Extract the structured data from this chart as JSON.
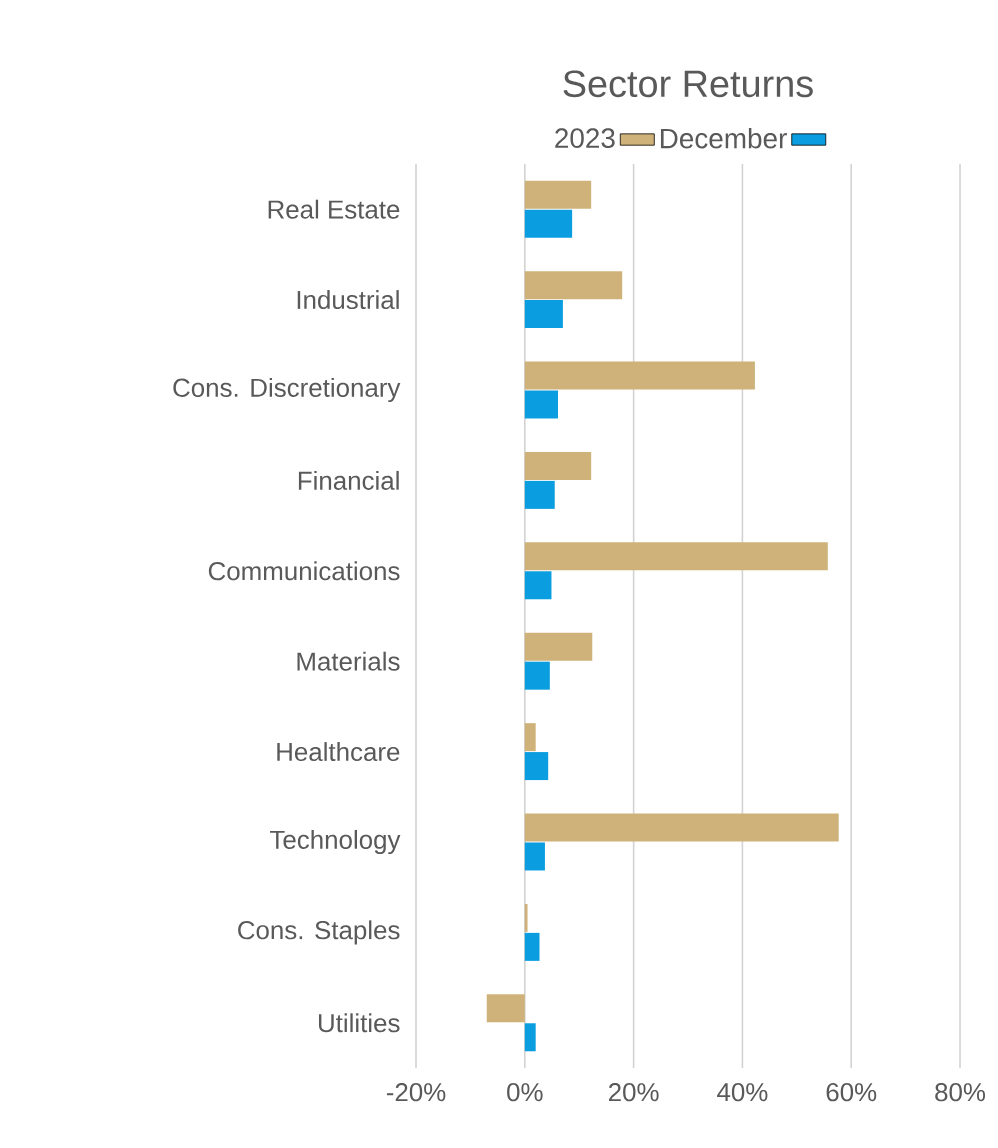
{
  "chart_data": {
    "type": "bar",
    "orientation": "horizontal",
    "title": "Sector Returns",
    "categories": [
      "Real Estate",
      "Industrial",
      "Cons. Discretionary",
      "Financial",
      "Communications",
      "Materials",
      "Healthcare",
      "Technology",
      "Cons. Staples",
      "Utilities"
    ],
    "series": [
      {
        "name": "December",
        "color": "#0a9ee0",
        "values": [
          8.7,
          7.0,
          6.1,
          5.5,
          4.9,
          4.6,
          4.3,
          3.7,
          2.7,
          2.0
        ]
      },
      {
        "name": "2023",
        "color": "#cfb27a",
        "values": [
          12.2,
          17.9,
          42.3,
          12.2,
          55.7,
          12.4,
          2.0,
          57.7,
          0.5,
          -7.0
        ]
      }
    ],
    "xlim": [
      -20,
      80
    ],
    "xticks": [
      {
        "value": -20,
        "label": "-20%"
      },
      {
        "value": 0,
        "label": "0%"
      },
      {
        "value": 20,
        "label": "20%"
      },
      {
        "value": 40,
        "label": "40%"
      },
      {
        "value": 60,
        "label": "60%"
      },
      {
        "value": 80,
        "label": "80%"
      }
    ],
    "grid": "x",
    "legend": "top"
  }
}
